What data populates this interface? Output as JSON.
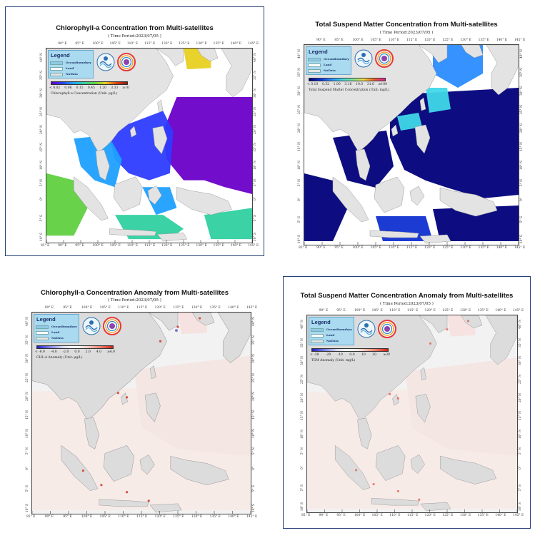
{
  "lon_ticks": [
    "85° E",
    "90° E",
    "95° E",
    "100° E",
    "105° E",
    "110° E",
    "115° E",
    "120° E",
    "125° E",
    "130° E",
    "135° E",
    "140° E",
    "145° E"
  ],
  "lon_ticks_top": [
    "90° E",
    "95° E",
    "100° E",
    "105° E",
    "110° E",
    "115° E",
    "120° E",
    "125° E",
    "130° E",
    "135° E",
    "140° E",
    "145° E"
  ],
  "lat_ticks": [
    "40° N",
    "35° N",
    "30° N",
    "25° N",
    "20° N",
    "15° N",
    "10° N",
    "5° N",
    "0°",
    "5° S",
    "10° S"
  ],
  "legend": {
    "title": "Legend",
    "items": [
      {
        "label": "OceanBoundary",
        "color": "#8fc9e6"
      },
      {
        "label": "Land",
        "color": "#ffffff"
      },
      {
        "label": "NoData",
        "color": "#e4e4e4"
      }
    ]
  },
  "maps": [
    {
      "id": "chl",
      "title": "Chlorophyll-a Concentration from Multi-satellites",
      "period": "( Time Period:2023/07/05 )",
      "colorbar_labels": [
        "< 0.02",
        "0.06",
        "0.15",
        "0.45",
        "1.20",
        "3.33",
        "≥10"
      ],
      "colorbar_caption": "Chlorophyll-a Concentration (Unit: μg/L)",
      "colors": [
        "#6a00c8",
        "#2d3cff",
        "#1fa0ff",
        "#30d0a0",
        "#60d040",
        "#e8d020",
        "#e04010",
        "#8a1a10"
      ]
    },
    {
      "id": "tsm",
      "title": "Total Suspend Matter Concentration from Multi-satellites",
      "period": "( Time Period:2023/07/05 )",
      "colorbar_labels": [
        "< 0.10",
        "0.32",
        "1.00",
        "3.16",
        "10.0",
        "31.6",
        "≥100"
      ],
      "colorbar_caption": "Total Suspend Matter Concentration (Unit: mg/L)",
      "colors": [
        "#00007a",
        "#1030d0",
        "#2a8cff",
        "#40d8e8",
        "#80e8a0",
        "#f0e040",
        "#f06030",
        "#e020a0"
      ]
    },
    {
      "id": "chl-anomaly",
      "title": "Chlorophyll-a Concentration Anomaly from Multi-satellites",
      "period": "( Time Period:2023/07/05 )",
      "colorbar_labels": [
        "< -6.0",
        "-4.0",
        "-2.0",
        "0.0",
        "2.0",
        "4.0",
        "≥6.0"
      ],
      "colorbar_caption": "CHL-A Anomaly (Unit: μg/L)",
      "colors": [
        "#2020c0",
        "#8080e8",
        "#d8d8f8",
        "#ffffff",
        "#f8d0c8",
        "#f08070",
        "#d02010"
      ]
    },
    {
      "id": "tsm-anomaly",
      "title": "Total Suspend Matter Concentration Anomaly from Multi-satellites",
      "period": "( Time Period:2023/07/05 )",
      "colorbar_labels": [
        "< -30",
        "-20",
        "-10",
        "0.0",
        "10",
        "20",
        "≥30"
      ],
      "colorbar_caption": "TSM Anomaly (Unit: mg/L)",
      "colors": [
        "#2020c0",
        "#8080e8",
        "#d8d8f8",
        "#ffffff",
        "#f8d0c8",
        "#f08070",
        "#d02010"
      ]
    }
  ]
}
